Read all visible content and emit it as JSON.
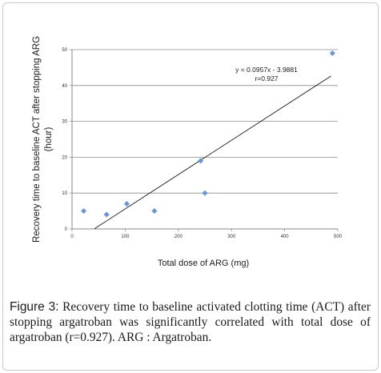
{
  "chart_data": {
    "type": "scatter",
    "ylabel_lines": [
      "Recovery time to baseline ACT after stopping ARG",
      "(hour)"
    ],
    "xlabel": "Total dose of ARG (mg)",
    "xlim": [
      0,
      500
    ],
    "ylim": [
      0,
      50
    ],
    "xticks": [
      0,
      100,
      200,
      300,
      400,
      500
    ],
    "yticks": [
      0,
      10,
      20,
      30,
      40,
      50
    ],
    "grid": "horizontal",
    "marker_color": "#6f96cf",
    "line_color": "#1a1a1a",
    "points": [
      {
        "x": 22,
        "y": 5
      },
      {
        "x": 65,
        "y": 4
      },
      {
        "x": 103,
        "y": 7
      },
      {
        "x": 155,
        "y": 5
      },
      {
        "x": 242,
        "y": 19
      },
      {
        "x": 250,
        "y": 10
      },
      {
        "x": 490,
        "y": 49
      }
    ],
    "trendline": {
      "slope": 0.0957,
      "intercept": -3.9881,
      "x_range": [
        42,
        487
      ]
    },
    "annotation": {
      "equation": "y = 0.0957x - 3.9881",
      "r": "r=0.927"
    }
  },
  "caption": {
    "label": "Figure 3:",
    "text": " Recovery time to baseline activated clotting time (ACT) after stopping argatroban was significantly correlated with total dose of argatroban (r=0.927). ARG : Argatroban."
  }
}
